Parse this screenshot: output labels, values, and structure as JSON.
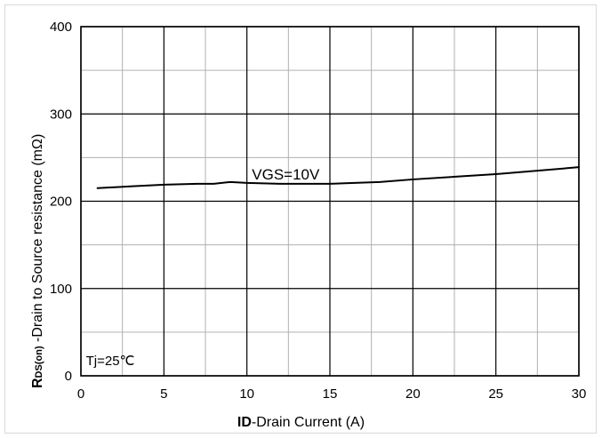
{
  "chart_data": {
    "type": "line",
    "title": "",
    "ylabel": {
      "prefix": "R",
      "subscript": "DS(on)",
      "text": " -Drain to Source resistance (mΩ)"
    },
    "xlabel": {
      "bold": "ID",
      "text": "-Drain Current  (A)"
    },
    "xlim": [
      0,
      30
    ],
    "ylim": [
      0,
      400
    ],
    "x_ticks": [
      "0",
      "5",
      "10",
      "15",
      "20",
      "25",
      "30"
    ],
    "y_ticks": [
      "0",
      "100",
      "200",
      "300",
      "400"
    ],
    "x_minor_step": 2.5,
    "y_minor_step": 50,
    "grid": true,
    "series": [
      {
        "name": "VGS=10V",
        "color": "#000000",
        "x": [
          1,
          3,
          5,
          7,
          8,
          9,
          10,
          12,
          15,
          18,
          20,
          25,
          30
        ],
        "y": [
          215,
          217,
          219,
          220,
          220,
          222,
          221,
          220,
          220,
          222,
          225,
          231,
          239
        ]
      }
    ],
    "annotations": [
      {
        "text": "VGS=10V",
        "x": 10.3,
        "y": 225
      },
      {
        "text": "Tj=25℃",
        "x": 0.3,
        "y": 12
      }
    ]
  }
}
